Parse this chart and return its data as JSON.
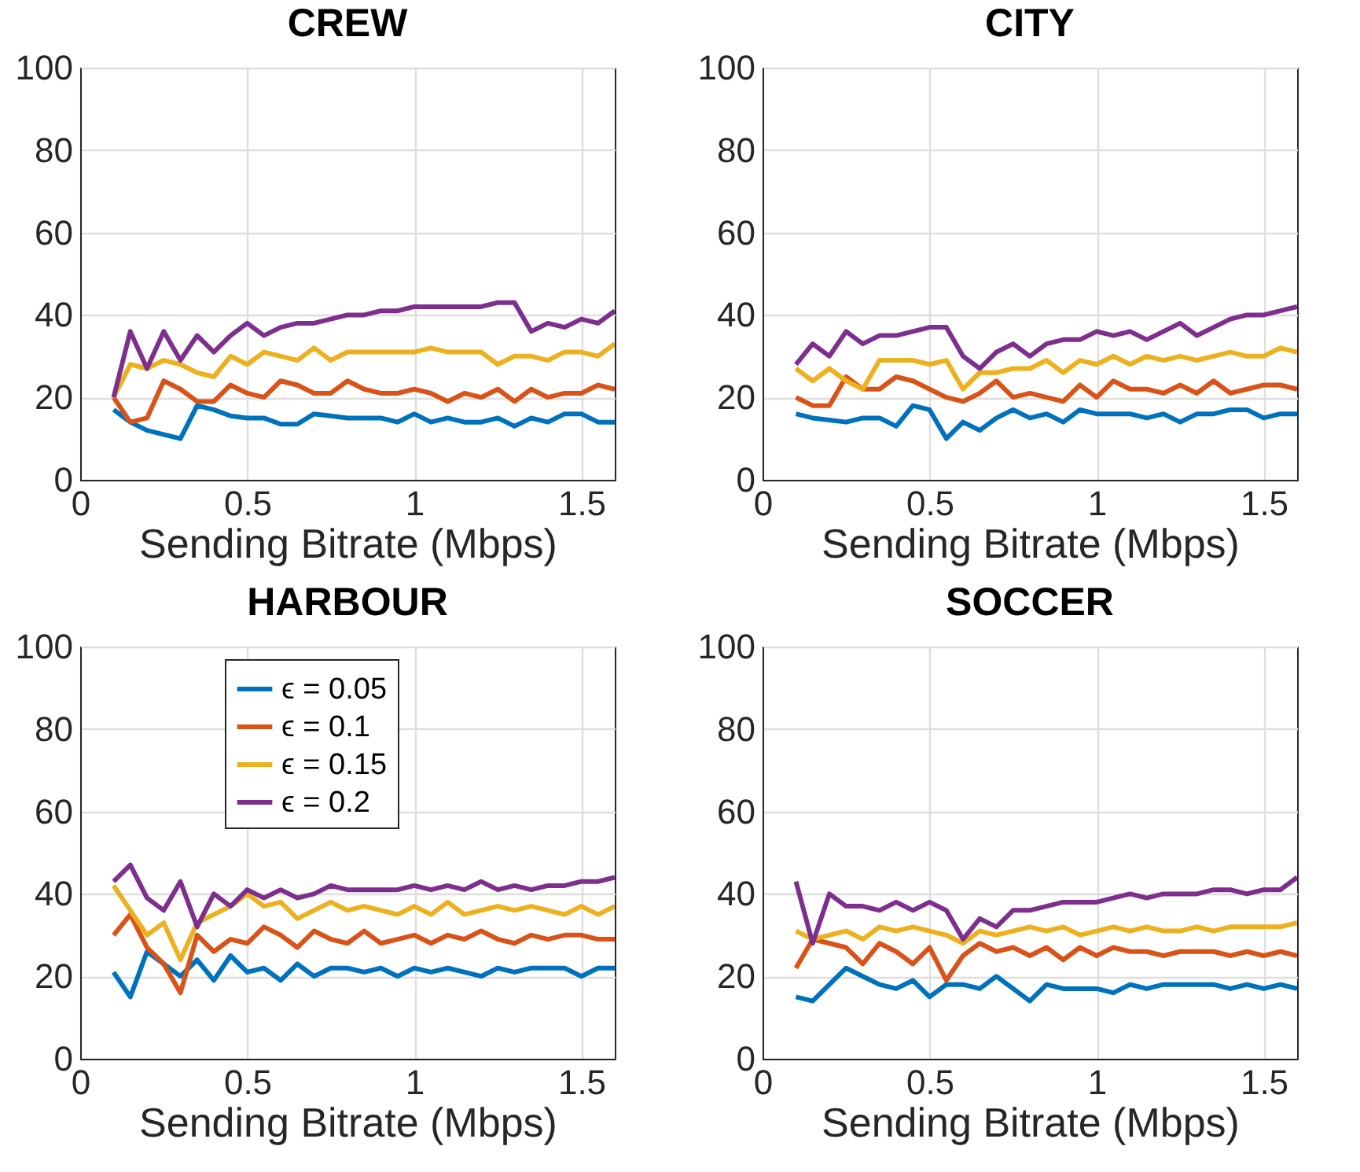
{
  "chart_data": [
    {
      "type": "line",
      "title": "CREW",
      "xlabel": "Sending Bitrate (Mbps)",
      "xlim": [
        0,
        1.6
      ],
      "xticks": [
        0,
        0.5,
        1,
        1.5
      ],
      "ylim": [
        0,
        100
      ],
      "yticks": [
        0,
        20,
        40,
        60,
        80,
        100
      ],
      "grid": true,
      "legend": false,
      "x": [
        0.1,
        0.15,
        0.2,
        0.25,
        0.3,
        0.35,
        0.4,
        0.45,
        0.5,
        0.55,
        0.6,
        0.65,
        0.7,
        0.75,
        0.8,
        0.85,
        0.9,
        0.95,
        1.0,
        1.05,
        1.1,
        1.15,
        1.2,
        1.25,
        1.3,
        1.35,
        1.4,
        1.45,
        1.5,
        1.55,
        1.6
      ],
      "series": [
        {
          "color": "#0072bd",
          "values": [
            17,
            14,
            12,
            11,
            10,
            18,
            17,
            15.5,
            15,
            15,
            13.5,
            13.5,
            16,
            15.5,
            15,
            15,
            15,
            14,
            16,
            14,
            15,
            14,
            14,
            15,
            13,
            15,
            14,
            16,
            16,
            14,
            14
          ]
        },
        {
          "color": "#d95319",
          "values": [
            20,
            14,
            15,
            24,
            22,
            19,
            19,
            23,
            21,
            20,
            24,
            23,
            21,
            21,
            24,
            22,
            21,
            21,
            22,
            21,
            19,
            21,
            20,
            22,
            19,
            22,
            20,
            21,
            21,
            23,
            22
          ]
        },
        {
          "color": "#edb120",
          "values": [
            20,
            28,
            27,
            29,
            28,
            26,
            25,
            30,
            28,
            31,
            30,
            29,
            32,
            29,
            31,
            31,
            31,
            31,
            31,
            32,
            31,
            31,
            31,
            28,
            30,
            30,
            29,
            31,
            31,
            30,
            33
          ]
        },
        {
          "color": "#7e2f8e",
          "values": [
            20,
            36,
            27,
            36,
            29,
            35,
            31,
            35,
            38,
            35,
            37,
            38,
            38,
            39,
            40,
            40,
            41,
            41,
            42,
            42,
            42,
            42,
            42,
            43,
            43,
            36,
            38,
            37,
            39,
            38,
            41
          ]
        }
      ]
    },
    {
      "type": "line",
      "title": "CITY",
      "xlabel": "Sending Bitrate (Mbps)",
      "xlim": [
        0,
        1.6
      ],
      "xticks": [
        0,
        0.5,
        1,
        1.5
      ],
      "ylim": [
        0,
        100
      ],
      "yticks": [
        0,
        20,
        40,
        60,
        80,
        100
      ],
      "grid": true,
      "legend": false,
      "x": [
        0.1,
        0.15,
        0.2,
        0.25,
        0.3,
        0.35,
        0.4,
        0.45,
        0.5,
        0.55,
        0.6,
        0.65,
        0.7,
        0.75,
        0.8,
        0.85,
        0.9,
        0.95,
        1.0,
        1.05,
        1.1,
        1.15,
        1.2,
        1.25,
        1.3,
        1.35,
        1.4,
        1.45,
        1.5,
        1.55,
        1.6
      ],
      "series": [
        {
          "color": "#0072bd",
          "values": [
            16,
            15,
            14.5,
            14,
            15,
            15,
            13,
            18,
            17,
            10,
            14,
            12,
            15,
            17,
            15,
            16,
            14,
            17,
            16,
            16,
            16,
            15,
            16,
            14,
            16,
            16,
            17,
            17,
            15,
            16,
            16
          ]
        },
        {
          "color": "#d95319",
          "values": [
            20,
            18,
            18,
            25,
            22,
            22,
            25,
            24,
            22,
            20,
            19,
            21,
            24,
            20,
            21,
            20,
            19,
            23,
            20,
            24,
            22,
            22,
            21,
            23,
            21,
            24,
            21,
            22,
            23,
            23,
            22
          ]
        },
        {
          "color": "#edb120",
          "values": [
            27,
            24,
            27,
            24,
            22,
            29,
            29,
            29,
            28,
            29,
            22,
            26,
            26,
            27,
            27,
            29,
            26,
            29,
            28,
            30,
            28,
            30,
            29,
            30,
            29,
            30,
            31,
            30,
            30,
            32,
            31
          ]
        },
        {
          "color": "#7e2f8e",
          "values": [
            28,
            33,
            30,
            36,
            33,
            35,
            35,
            36,
            37,
            37,
            30,
            27,
            31,
            33,
            30,
            33,
            34,
            34,
            36,
            35,
            36,
            34,
            36,
            38,
            35,
            37,
            39,
            40,
            40,
            41,
            42
          ]
        }
      ]
    },
    {
      "type": "line",
      "title": "HARBOUR",
      "xlabel": "Sending Bitrate (Mbps)",
      "xlim": [
        0,
        1.6
      ],
      "xticks": [
        0,
        0.5,
        1,
        1.5
      ],
      "ylim": [
        0,
        100
      ],
      "yticks": [
        0,
        20,
        40,
        60,
        80,
        100
      ],
      "grid": true,
      "legend": "top left",
      "x": [
        0.1,
        0.15,
        0.2,
        0.25,
        0.3,
        0.35,
        0.4,
        0.45,
        0.5,
        0.55,
        0.6,
        0.65,
        0.7,
        0.75,
        0.8,
        0.85,
        0.9,
        0.95,
        1.0,
        1.05,
        1.1,
        1.15,
        1.2,
        1.25,
        1.3,
        1.35,
        1.4,
        1.45,
        1.5,
        1.55,
        1.6
      ],
      "series": [
        {
          "name": "ϵ = 0.05",
          "color": "#0072bd",
          "values": [
            21,
            15,
            26,
            23,
            20,
            24,
            19,
            25,
            21,
            22,
            19,
            23,
            20,
            22,
            22,
            21,
            22,
            20,
            22,
            21,
            22,
            21,
            20,
            22,
            21,
            22,
            22,
            22,
            20,
            22,
            22
          ]
        },
        {
          "name": "ϵ = 0.1",
          "color": "#d95319",
          "values": [
            30,
            35,
            27,
            23,
            16,
            30,
            26,
            29,
            28,
            32,
            30,
            27,
            31,
            29,
            28,
            31,
            28,
            29,
            30,
            28,
            30,
            29,
            31,
            29,
            28,
            30,
            29,
            30,
            30,
            29,
            29
          ]
        },
        {
          "name": "ϵ = 0.15",
          "color": "#edb120",
          "values": [
            42,
            36,
            30,
            33,
            24,
            33,
            35,
            37,
            40,
            37,
            38,
            34,
            36,
            38,
            36,
            37,
            36,
            35,
            37,
            35,
            38,
            35,
            36,
            37,
            36,
            37,
            36,
            35,
            37,
            35,
            37
          ]
        },
        {
          "name": "ϵ = 0.2",
          "color": "#7e2f8e",
          "values": [
            43,
            47,
            39,
            36,
            43,
            32,
            40,
            37,
            41,
            39,
            41,
            39,
            40,
            42,
            41,
            41,
            41,
            41,
            42,
            41,
            42,
            41,
            43,
            41,
            42,
            41,
            42,
            42,
            43,
            43,
            44
          ]
        }
      ]
    },
    {
      "type": "line",
      "title": "SOCCER",
      "xlabel": "Sending Bitrate (Mbps)",
      "xlim": [
        0,
        1.6
      ],
      "xticks": [
        0,
        0.5,
        1,
        1.5
      ],
      "ylim": [
        0,
        100
      ],
      "yticks": [
        0,
        20,
        40,
        60,
        80,
        100
      ],
      "grid": true,
      "legend": false,
      "x": [
        0.1,
        0.15,
        0.2,
        0.25,
        0.3,
        0.35,
        0.4,
        0.45,
        0.5,
        0.55,
        0.6,
        0.65,
        0.7,
        0.75,
        0.8,
        0.85,
        0.9,
        0.95,
        1.0,
        1.05,
        1.1,
        1.15,
        1.2,
        1.25,
        1.3,
        1.35,
        1.4,
        1.45,
        1.5,
        1.55,
        1.6
      ],
      "series": [
        {
          "color": "#0072bd",
          "values": [
            15,
            14,
            18,
            22,
            20,
            18,
            17,
            19,
            15,
            18,
            18,
            17,
            20,
            17,
            14,
            18,
            17,
            17,
            17,
            16,
            18,
            17,
            18,
            18,
            18,
            18,
            17,
            18,
            17,
            18,
            17
          ]
        },
        {
          "color": "#d95319",
          "values": [
            22,
            29,
            28,
            27,
            23,
            28,
            26,
            23,
            27,
            19,
            25,
            28,
            26,
            27,
            25,
            27,
            24,
            27,
            25,
            27,
            26,
            26,
            25,
            26,
            26,
            26,
            25,
            26,
            25,
            26,
            25
          ]
        },
        {
          "color": "#edb120",
          "values": [
            31,
            29,
            30,
            31,
            29,
            32,
            31,
            32,
            31,
            30,
            28,
            31,
            30,
            31,
            32,
            31,
            32,
            30,
            31,
            32,
            31,
            32,
            31,
            31,
            32,
            31,
            32,
            32,
            32,
            32,
            33
          ]
        },
        {
          "color": "#7e2f8e",
          "values": [
            43,
            28,
            40,
            37,
            37,
            36,
            38,
            36,
            38,
            36,
            29,
            34,
            32,
            36,
            36,
            37,
            38,
            38,
            38,
            39,
            40,
            39,
            40,
            40,
            40,
            41,
            41,
            40,
            41,
            41,
            44
          ]
        }
      ]
    }
  ]
}
